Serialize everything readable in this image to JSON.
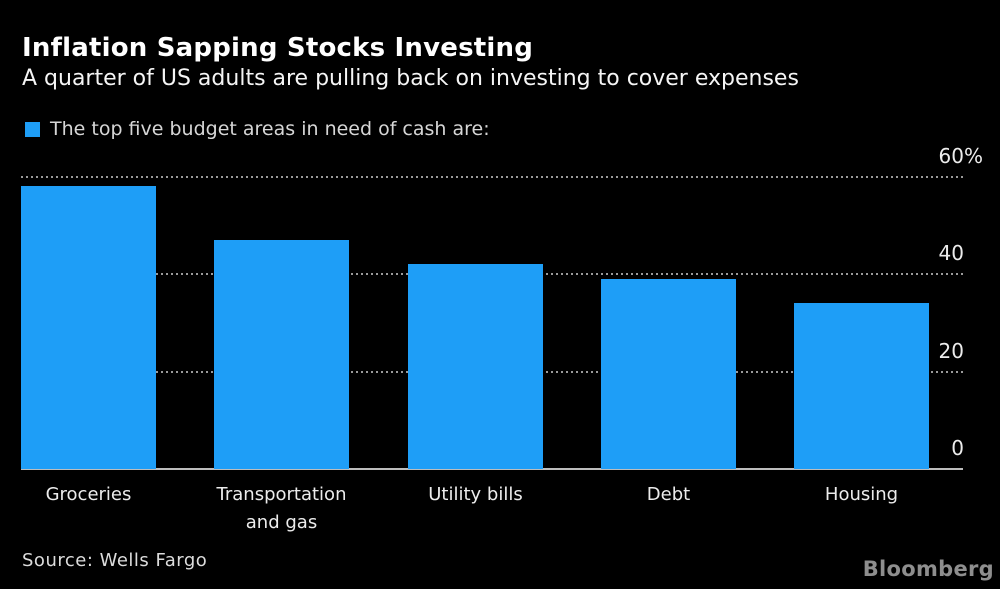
{
  "chart": {
    "title": "Inflation Sapping Stocks Investing",
    "subtitle": "A quarter of US adults are pulling back on investing to cover expenses",
    "legend_label": "The top five budget areas in need of cash are:",
    "source": "Source: Wells Fargo",
    "brand": "Bloomberg"
  },
  "chart_data": {
    "type": "bar",
    "title": "Inflation Sapping Stocks Investing",
    "subtitle": "A quarter of US adults are pulling back on investing to cover expenses",
    "legend": [
      "The top five budget areas in need of cash are:"
    ],
    "legend_position": "top-left",
    "categories": [
      "Groceries",
      "Transportation and gas",
      "Utility bills",
      "Debt",
      "Housing"
    ],
    "categories_wrapped": [
      [
        "Groceries"
      ],
      [
        "Transportation",
        "and gas"
      ],
      [
        "Utility bills"
      ],
      [
        "Debt"
      ],
      [
        "Housing"
      ]
    ],
    "values": [
      58,
      47,
      42,
      39,
      34
    ],
    "unit": "%",
    "xlabel": "",
    "ylabel": "",
    "ylim": [
      0,
      60
    ],
    "yticks": [
      0,
      20,
      40,
      60
    ],
    "ytick_labels": [
      "0",
      "20",
      "40",
      "60%"
    ],
    "axis_side": "right",
    "grid": "dotted horizontal gridlines at 20, 40, 60; solid baseline at 0",
    "bar_color": "#1e9ef7",
    "background_color": "#000000",
    "source": "Wells Fargo",
    "branding": "Bloomberg"
  }
}
